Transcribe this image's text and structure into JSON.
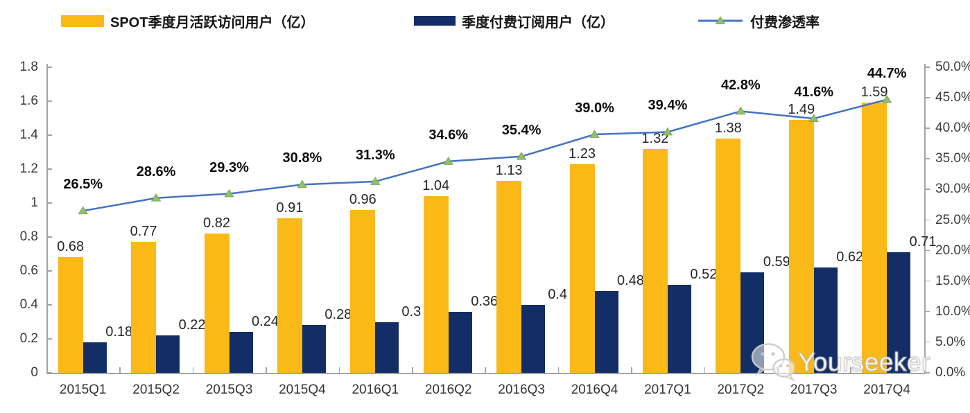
{
  "legend": {
    "items": [
      {
        "id": "mau",
        "label": "SPOT季度月活跃访问用户（亿）",
        "type": "bar",
        "color": "#FBB917"
      },
      {
        "id": "subs",
        "label": "季度付费订阅用户（亿）",
        "type": "bar",
        "color": "#132E66"
      },
      {
        "id": "pen",
        "label": "付费渗透率",
        "type": "line",
        "color": "#4472C4",
        "marker_color": "#92BE6A"
      }
    ]
  },
  "chart_data": {
    "type": "combo-bar-line",
    "categories": [
      "2015Q1",
      "2015Q2",
      "2015Q3",
      "2015Q4",
      "2016Q1",
      "2016Q2",
      "2016Q3",
      "2016Q4",
      "2017Q1",
      "2017Q2",
      "2017Q3",
      "2017Q4"
    ],
    "series": [
      {
        "name": "SPOT季度月活跃访问用户（亿）",
        "type": "bar",
        "axis": "left",
        "color": "#FBB917",
        "values": [
          0.68,
          0.77,
          0.82,
          0.91,
          0.96,
          1.04,
          1.13,
          1.23,
          1.32,
          1.38,
          1.49,
          1.59
        ],
        "labels": [
          "0.68",
          "0.77",
          "0.82",
          "0.91",
          "0.96",
          "1.04",
          "1.13",
          "1.23",
          "1.32",
          "1.38",
          "1.49",
          "1.59"
        ]
      },
      {
        "name": "季度付费订阅用户（亿）",
        "type": "bar",
        "axis": "left",
        "color": "#132E66",
        "values": [
          0.18,
          0.22,
          0.24,
          0.28,
          0.3,
          0.36,
          0.4,
          0.48,
          0.52,
          0.59,
          0.62,
          0.71
        ],
        "labels": [
          "0.18",
          "0.22",
          "0.24",
          "0.28",
          "0.3",
          "0.36",
          "0.4",
          "0.48",
          "0.52",
          "0.59",
          "0.62",
          "0.71"
        ]
      },
      {
        "name": "付费渗透率",
        "type": "line",
        "axis": "right",
        "color": "#4472C4",
        "marker_color": "#92BE6A",
        "values_percent": [
          26.5,
          28.6,
          29.3,
          30.8,
          31.3,
          34.6,
          35.4,
          39.0,
          39.4,
          42.8,
          41.6,
          44.7
        ],
        "labels": [
          "26.5%",
          "28.6%",
          "29.3%",
          "30.8%",
          "31.3%",
          "34.6%",
          "35.4%",
          "39.0%",
          "39.4%",
          "42.8%",
          "41.6%",
          "44.7%"
        ]
      }
    ],
    "left_axis": {
      "min": 0,
      "max": 1.8,
      "step": 0.2,
      "tick_labels": [
        "0",
        "0.2",
        "0.4",
        "0.6",
        "0.8",
        "1",
        "1.2",
        "1.4",
        "1.6",
        "1.8"
      ]
    },
    "right_axis": {
      "min": 0,
      "max": 50,
      "step": 5,
      "tick_labels": [
        "0.0%",
        "5.0%",
        "10.0%",
        "15.0%",
        "20.0%",
        "25.0%",
        "30.0%",
        "35.0%",
        "40.0%",
        "45.0%",
        "50.0%"
      ]
    },
    "grid": false,
    "legend_position": "top"
  },
  "watermark": {
    "text": "Yourseeker"
  }
}
